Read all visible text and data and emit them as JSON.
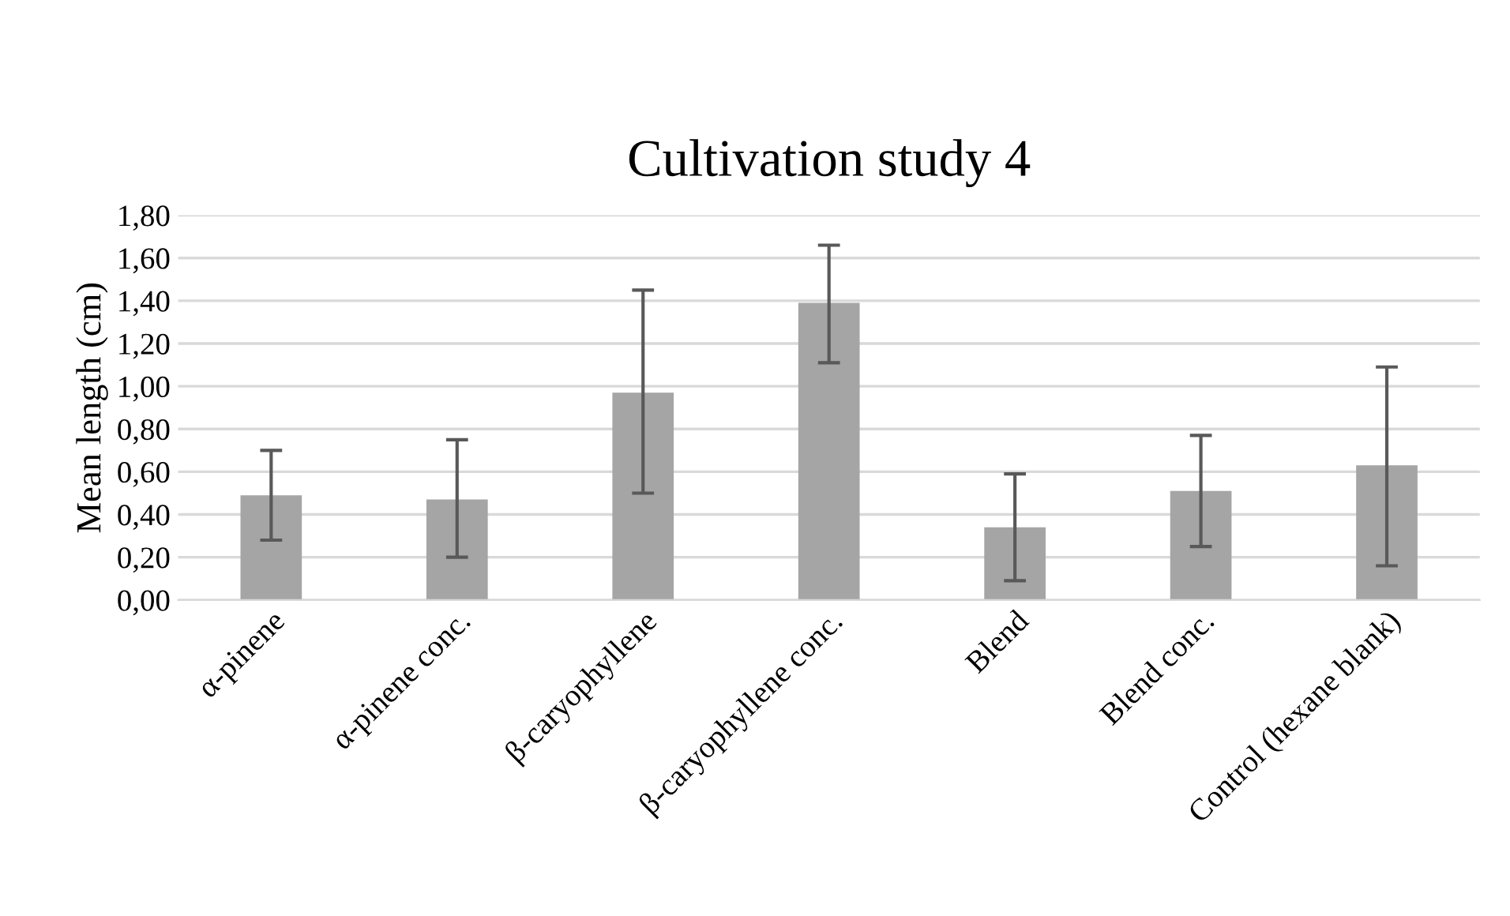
{
  "chart_data": {
    "type": "bar",
    "title": "Cultivation study 4",
    "ylabel": "Mean length (cm)",
    "categories": [
      "α-pinene",
      "α-pinene conc.",
      "β-caryophyllene",
      "β-caryophyllene conc.",
      "Blend",
      "Blend conc.",
      "Control (hexane blank)"
    ],
    "values": [
      0.49,
      0.47,
      0.97,
      1.39,
      0.34,
      0.51,
      0.63
    ],
    "errors": [
      [
        0.28,
        0.7
      ],
      [
        0.2,
        0.75
      ],
      [
        0.5,
        1.45
      ],
      [
        1.11,
        1.66
      ],
      [
        0.09,
        0.59
      ],
      [
        0.25,
        0.77
      ],
      [
        0.16,
        1.09
      ]
    ],
    "color": "#a5a5a5",
    "ylim": [
      0,
      1.8
    ],
    "yticks": [
      {
        "value": 0,
        "label": "0,00"
      },
      {
        "value": 0.2,
        "label": "0,20"
      },
      {
        "value": 0.4,
        "label": "0,40"
      },
      {
        "value": 0.6,
        "label": "0,60"
      },
      {
        "value": 0.8,
        "label": "0,80"
      },
      {
        "value": 1.0,
        "label": "1,00"
      },
      {
        "value": 1.2,
        "label": "1,20"
      },
      {
        "value": 1.4,
        "label": "1,40"
      },
      {
        "value": 1.6,
        "label": "1,60"
      },
      {
        "value": 1.8,
        "label": "1,80"
      }
    ],
    "grid": "y",
    "legend": false
  }
}
